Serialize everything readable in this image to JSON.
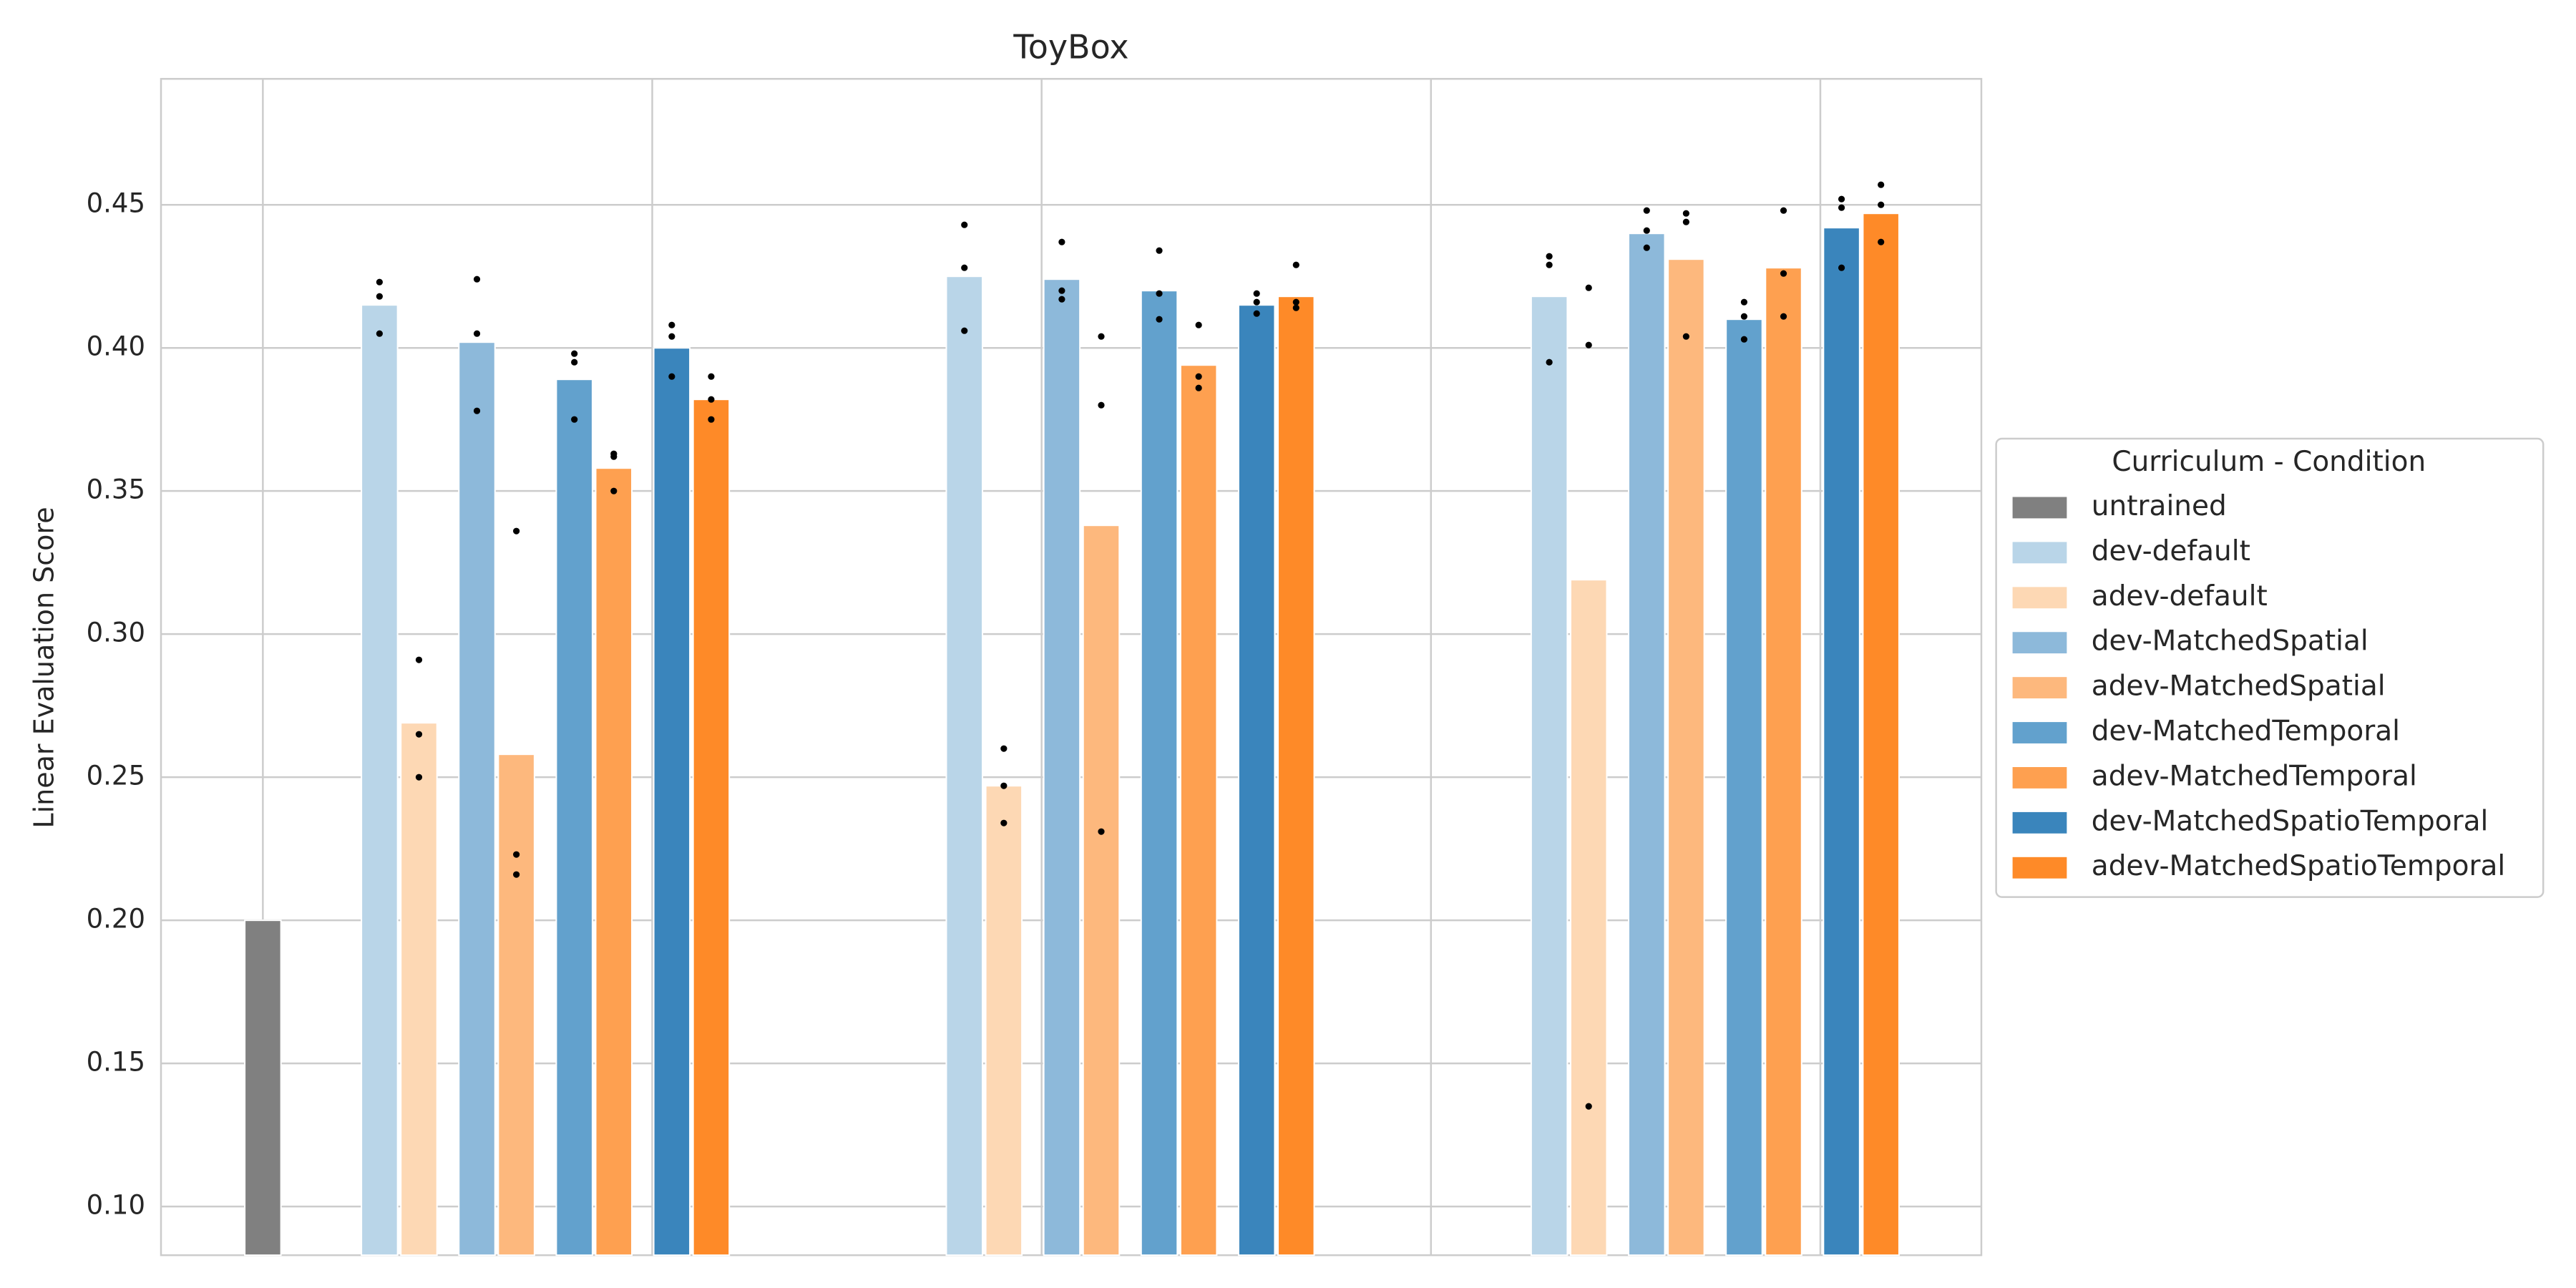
{
  "chart_data": {
    "type": "bar",
    "title": "ToyBox",
    "y_label": "Linear Evaluation Score",
    "categories": [
      null,
      null,
      null,
      null
    ],
    "ylim": [
      0.083,
      0.494
    ],
    "yticks": [
      {
        "value": 0.1,
        "label": "0.10"
      },
      0.15,
      {
        "value": 0.2,
        "label": "0.20"
      },
      0.25,
      {
        "value": 0.3,
        "label": "0.30"
      },
      0.35,
      {
        "value": 0.4,
        "label": "0.40"
      },
      0.45
    ],
    "grid": true,
    "legend_title": "Curriculum - Condition",
    "legend_position": "right",
    "series": [
      {
        "name": "untrained",
        "color": "#808080",
        "values": [
          0.2,
          null,
          null,
          null
        ]
      },
      {
        "name": "dev-default",
        "color": "#b9d5e8",
        "values": [
          null,
          0.415,
          0.425,
          0.418
        ],
        "points": [
          null,
          [
            0.423,
            0.418,
            0.405
          ],
          [
            0.443,
            0.428,
            0.406
          ],
          [
            0.432,
            0.429,
            0.395
          ]
        ]
      },
      {
        "name": "adev-default",
        "color": "#fdd8b4",
        "values": [
          null,
          0.269,
          0.247,
          0.319
        ],
        "points": [
          null,
          [
            0.291,
            0.265,
            0.25
          ],
          [
            0.26,
            0.247,
            0.234
          ],
          [
            0.421,
            0.401,
            0.135
          ]
        ]
      },
      {
        "name": "dev-MatchedSpatial",
        "color": "#8db9da",
        "values": [
          null,
          0.402,
          0.424,
          0.44
        ],
        "points": [
          null,
          [
            0.424,
            0.405,
            0.378
          ],
          [
            0.437,
            0.42,
            0.417
          ],
          [
            0.448,
            0.441,
            0.435
          ]
        ]
      },
      {
        "name": "adev-MatchedSpatial",
        "color": "#fdb87d",
        "values": [
          null,
          0.258,
          0.338,
          0.431
        ],
        "points": [
          null,
          [
            0.336,
            0.223,
            0.216
          ],
          [
            0.404,
            0.38,
            0.231
          ],
          [
            0.447,
            0.444,
            0.404
          ]
        ]
      },
      {
        "name": "dev-MatchedTemporal",
        "color": "#62a1cd",
        "values": [
          null,
          0.389,
          0.42,
          0.41
        ],
        "points": [
          null,
          [
            0.398,
            0.395,
            0.375
          ],
          [
            0.434,
            0.419,
            0.41
          ],
          [
            0.416,
            0.411,
            0.403
          ]
        ]
      },
      {
        "name": "adev-MatchedTemporal",
        "color": "#fea050",
        "values": [
          null,
          0.358,
          0.394,
          0.428
        ],
        "points": [
          null,
          [
            0.363,
            0.362,
            0.35
          ],
          [
            0.408,
            0.39,
            0.386
          ],
          [
            0.448,
            0.426,
            0.411
          ]
        ]
      },
      {
        "name": "dev-MatchedSpatioTemporal",
        "color": "#3a85bc",
        "values": [
          null,
          0.4,
          0.415,
          0.442
        ],
        "points": [
          null,
          [
            0.408,
            0.404,
            0.39
          ],
          [
            0.419,
            0.416,
            0.412
          ],
          [
            0.452,
            0.449,
            0.428
          ]
        ]
      },
      {
        "name": "adev-MatchedSpatioTemporal",
        "color": "#fe8a28",
        "values": [
          null,
          0.382,
          0.418,
          0.447
        ],
        "points": [
          null,
          [
            0.39,
            0.382,
            0.375
          ],
          [
            0.429,
            0.416,
            0.414
          ],
          [
            0.457,
            0.45,
            0.437
          ]
        ]
      }
    ]
  }
}
